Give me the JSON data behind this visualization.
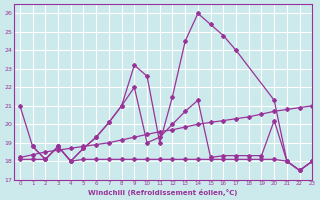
{
  "xlabel": "Windchill (Refroidissement éolien,°C)",
  "xlim": [
    -0.5,
    23
  ],
  "ylim": [
    17,
    26.5
  ],
  "yticks": [
    17,
    18,
    19,
    20,
    21,
    22,
    23,
    24,
    25,
    26
  ],
  "xticks": [
    0,
    1,
    2,
    3,
    4,
    5,
    6,
    7,
    8,
    9,
    10,
    11,
    12,
    13,
    14,
    15,
    16,
    17,
    18,
    19,
    20,
    21,
    22,
    23
  ],
  "bg_color": "#cce9ec",
  "line_color": "#993399",
  "grid_color": "#ffffff",
  "series": [
    {
      "x": [
        0,
        1,
        2,
        3,
        4,
        5,
        6,
        7,
        8,
        9,
        10,
        11,
        12,
        13,
        14,
        15,
        16,
        17,
        20,
        21,
        22,
        23
      ],
      "y": [
        21.0,
        18.8,
        18.1,
        18.8,
        18.0,
        18.7,
        19.3,
        20.1,
        21.0,
        23.2,
        22.6,
        19.0,
        21.5,
        24.5,
        26.0,
        25.4,
        24.8,
        24.0,
        21.3,
        18.0,
        17.5,
        18.0
      ]
    },
    {
      "x": [
        1,
        2,
        3,
        4,
        5,
        6,
        7,
        8,
        9,
        10,
        11,
        12,
        13,
        14,
        15,
        16,
        17,
        18,
        19,
        20,
        21,
        22,
        23
      ],
      "y": [
        18.8,
        18.1,
        18.8,
        18.0,
        18.7,
        19.3,
        20.1,
        21.0,
        22.0,
        19.0,
        19.3,
        20.0,
        20.7,
        21.3,
        18.2,
        18.3,
        18.3,
        18.3,
        18.3,
        20.2,
        18.0,
        17.5,
        18.0
      ]
    },
    {
      "x": [
        0,
        1,
        2,
        3,
        4,
        5,
        6,
        7,
        8,
        9,
        10,
        11,
        12,
        13,
        14,
        15,
        16,
        17,
        18,
        19,
        20,
        21,
        22,
        23
      ],
      "y": [
        18.2,
        18.35,
        18.5,
        18.6,
        18.7,
        18.8,
        18.9,
        19.0,
        19.15,
        19.3,
        19.45,
        19.6,
        19.7,
        19.85,
        20.0,
        20.1,
        20.2,
        20.3,
        20.4,
        20.55,
        20.7,
        20.8,
        20.9,
        21.0
      ]
    },
    {
      "x": [
        0,
        1,
        2,
        3,
        4,
        5,
        6,
        7,
        8,
        9,
        10,
        11,
        12,
        13,
        14,
        15,
        16,
        17,
        18,
        19,
        20,
        21,
        22,
        23
      ],
      "y": [
        18.1,
        18.1,
        18.1,
        18.8,
        18.0,
        18.1,
        18.1,
        18.1,
        18.1,
        18.1,
        18.1,
        18.1,
        18.1,
        18.1,
        18.1,
        18.1,
        18.1,
        18.1,
        18.1,
        18.1,
        18.1,
        18.0,
        17.5,
        18.0
      ]
    }
  ]
}
